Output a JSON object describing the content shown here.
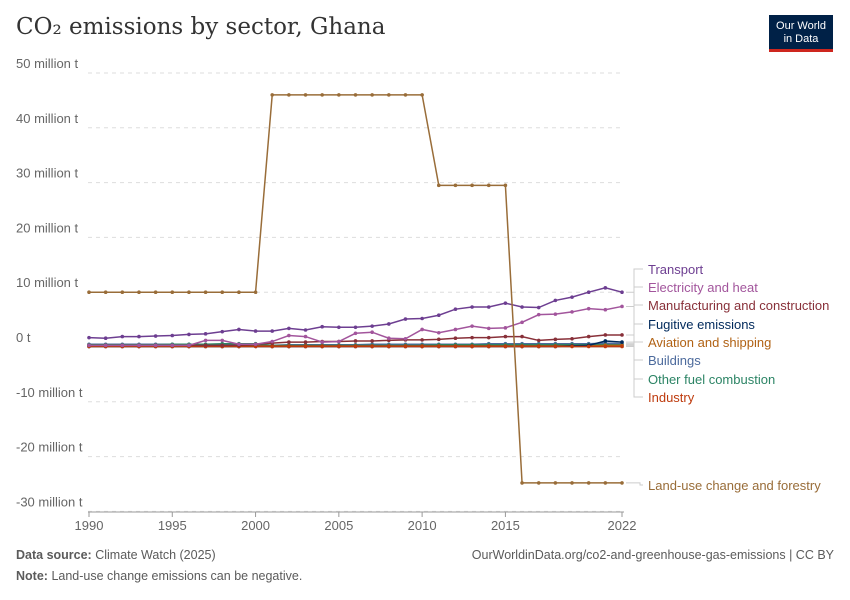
{
  "header": {
    "title": "CO₂ emissions by sector, Ghana",
    "logo_line1": "Our World",
    "logo_line2": "in Data"
  },
  "footer": {
    "source_label": "Data source:",
    "source": "Climate Watch (2025)",
    "url": "OurWorldinData.org/co2-and-greenhouse-gas-emissions | CC BY",
    "note_label": "Note:",
    "note": "Land-use change emissions can be negative."
  },
  "chart_data": {
    "type": "line",
    "title": "CO₂ emissions by sector, Ghana",
    "xlim": [
      1990,
      2022
    ],
    "ylim": [
      -30000000,
      50000000
    ],
    "x_ticks": [
      1990,
      1995,
      2000,
      2005,
      2010,
      2015,
      2022
    ],
    "y_ticks": [
      {
        "v": 50,
        "label": "50 million t"
      },
      {
        "v": 40,
        "label": "40 million t"
      },
      {
        "v": 30,
        "label": "30 million t"
      },
      {
        "v": 20,
        "label": "20 million t"
      },
      {
        "v": 10,
        "label": "10 million t"
      },
      {
        "v": 0,
        "label": "0 t"
      },
      {
        "v": -10,
        "label": "-10 million t"
      },
      {
        "v": -20,
        "label": "-20 million t"
      },
      {
        "v": -30,
        "label": "-30 million t"
      }
    ],
    "y_unit": "million t",
    "grid": true,
    "legend": "right, line-end labels",
    "x": [
      1990,
      1991,
      1992,
      1993,
      1994,
      1995,
      1996,
      1997,
      1998,
      1999,
      2000,
      2001,
      2002,
      2003,
      2004,
      2005,
      2006,
      2007,
      2008,
      2009,
      2010,
      2011,
      2012,
      2013,
      2014,
      2015,
      2016,
      2017,
      2018,
      2019,
      2020,
      2021,
      2022
    ],
    "series": [
      {
        "name": "Transport",
        "color": "#6d3e91",
        "values": [
          1.7,
          1.6,
          1.9,
          1.9,
          2.0,
          2.1,
          2.3,
          2.4,
          2.8,
          3.2,
          2.9,
          2.9,
          3.4,
          3.1,
          3.7,
          3.6,
          3.6,
          3.8,
          4.2,
          5.1,
          5.2,
          5.8,
          6.9,
          7.3,
          7.3,
          8.0,
          7.3,
          7.2,
          8.5,
          9.1,
          10.0,
          10.8,
          10.0
        ]
      },
      {
        "name": "Electricity and heat",
        "color": "#a2559c",
        "values": [
          0.3,
          0.3,
          0.3,
          0.3,
          0.3,
          0.3,
          0.3,
          1.2,
          1.2,
          0.5,
          0.5,
          1.0,
          2.1,
          1.9,
          0.9,
          1.0,
          2.5,
          2.7,
          1.6,
          1.5,
          3.2,
          2.6,
          3.2,
          3.8,
          3.4,
          3.5,
          4.5,
          5.9,
          6.0,
          6.4,
          7.0,
          6.8,
          7.4
        ]
      },
      {
        "name": "Manufacturing and construction",
        "color": "#883039",
        "values": [
          0.3,
          0.3,
          0.3,
          0.3,
          0.3,
          0.3,
          0.3,
          0.3,
          0.3,
          0.3,
          0.5,
          0.7,
          0.9,
          0.9,
          1.0,
          1.0,
          1.1,
          1.1,
          1.2,
          1.3,
          1.3,
          1.4,
          1.6,
          1.7,
          1.7,
          1.9,
          1.9,
          1.2,
          1.4,
          1.5,
          1.9,
          2.2,
          2.2
        ]
      },
      {
        "name": "Fugitive emissions",
        "color": "#00295b",
        "values": [
          0.1,
          0.1,
          0.1,
          0.1,
          0.1,
          0.1,
          0.1,
          0.1,
          0.1,
          0.1,
          0.1,
          0.1,
          0.1,
          0.1,
          0.1,
          0.1,
          0.1,
          0.1,
          0.1,
          0.1,
          0.1,
          0.1,
          0.1,
          0.1,
          0.1,
          0.1,
          0.1,
          0.1,
          0.1,
          0.2,
          0.3,
          1.1,
          0.9
        ]
      },
      {
        "name": "Aviation and shipping",
        "color": "#b16214",
        "values": [
          0.2,
          0.2,
          0.2,
          0.2,
          0.2,
          0.2,
          0.2,
          0.2,
          0.2,
          0.2,
          0.2,
          0.2,
          0.2,
          0.2,
          0.2,
          0.2,
          0.2,
          0.2,
          0.2,
          0.2,
          0.2,
          0.2,
          0.2,
          0.2,
          0.2,
          0.2,
          0.2,
          0.2,
          0.2,
          0.2,
          0.2,
          0.3,
          0.3
        ]
      },
      {
        "name": "Buildings",
        "color": "#4c6a9c",
        "values": [
          0.5,
          0.5,
          0.5,
          0.5,
          0.5,
          0.5,
          0.5,
          0.5,
          0.5,
          0.5,
          0.3,
          0.3,
          0.4,
          0.4,
          0.4,
          0.4,
          0.4,
          0.5,
          0.5,
          0.5,
          0.5,
          0.5,
          0.5,
          0.5,
          0.6,
          0.6,
          0.6,
          0.6,
          0.6,
          0.6,
          0.6,
          0.7,
          0.6
        ]
      },
      {
        "name": "Other fuel combustion",
        "color": "#2c8465",
        "values": [
          0.4,
          0.4,
          0.4,
          0.4,
          0.4,
          0.5,
          0.5,
          0.5,
          0.6,
          0.6,
          0.6,
          0.3,
          0.3,
          0.3,
          0.3,
          0.3,
          0.3,
          0.3,
          0.3,
          0.3,
          0.3,
          0.4,
          0.4,
          0.4,
          0.4,
          0.4,
          0.4,
          0.4,
          0.4,
          0.4,
          0.4,
          0.4,
          0.4
        ]
      },
      {
        "name": "Industry",
        "color": "#be3b0e",
        "values": [
          0.1,
          0.1,
          0.1,
          0.1,
          0.1,
          0.1,
          0.1,
          0.1,
          0.1,
          0.1,
          0.1,
          0.1,
          0.1,
          0.1,
          0.1,
          0.1,
          0.1,
          0.1,
          0.1,
          0.1,
          0.1,
          0.1,
          0.1,
          0.1,
          0.1,
          0.1,
          0.1,
          0.1,
          0.1,
          0.1,
          0.1,
          0.1,
          0.1
        ]
      },
      {
        "name": "Land-use change and forestry",
        "color": "#996d39",
        "values": [
          10,
          10,
          10,
          10,
          10,
          10,
          10,
          10,
          10,
          10,
          10,
          46,
          46,
          46,
          46,
          46,
          46,
          46,
          46,
          46,
          46,
          29.5,
          29.5,
          29.5,
          29.5,
          29.5,
          -24.8,
          -24.8,
          -24.8,
          -24.8,
          -24.8,
          -24.8,
          -24.8
        ]
      }
    ],
    "label_order": [
      0,
      1,
      2,
      3,
      4,
      5,
      6,
      7,
      8
    ]
  }
}
